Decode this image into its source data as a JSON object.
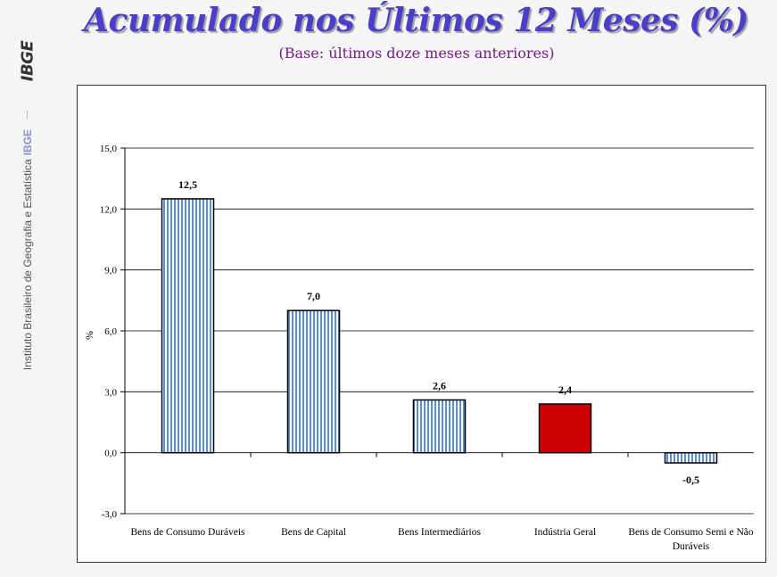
{
  "sidebar": {
    "logo": "IBGE",
    "caption": "Instituto Brasileiro de Geografia e Estatística",
    "caption_brand": "IBGE"
  },
  "header": {
    "title": "Acumulado nos Últimos 12 Meses (%)",
    "subtitle": "(Base: últimos doze meses anteriores)"
  },
  "chart_data": {
    "type": "bar",
    "ylabel": "%",
    "ylim": [
      -3.0,
      15.0
    ],
    "yticks": [
      "15,0",
      "12,0",
      "9,0",
      "6,0",
      "3,0",
      "0,0",
      "-3,0"
    ],
    "ytick_values": [
      15,
      12,
      9,
      6,
      3,
      0,
      -3
    ],
    "grid": true,
    "categories": [
      "Bens de Consumo Duráveis",
      "Bens de Capital",
      "Bens Intermediários",
      "Indústria Geral",
      "Bens de Consumo Semi e Não Duráveis"
    ],
    "values": [
      12.5,
      7.0,
      2.6,
      2.4,
      -0.5
    ],
    "value_labels": [
      "12,5",
      "7,0",
      "2,6",
      "2,4",
      "-0,5"
    ],
    "colors": [
      "#5b8fd6",
      "#5b8fd6",
      "#5b8fd6",
      "#cc0000",
      "#5b8fd6"
    ],
    "patterns": [
      "striped",
      "striped",
      "striped",
      "solid",
      "striped"
    ]
  }
}
